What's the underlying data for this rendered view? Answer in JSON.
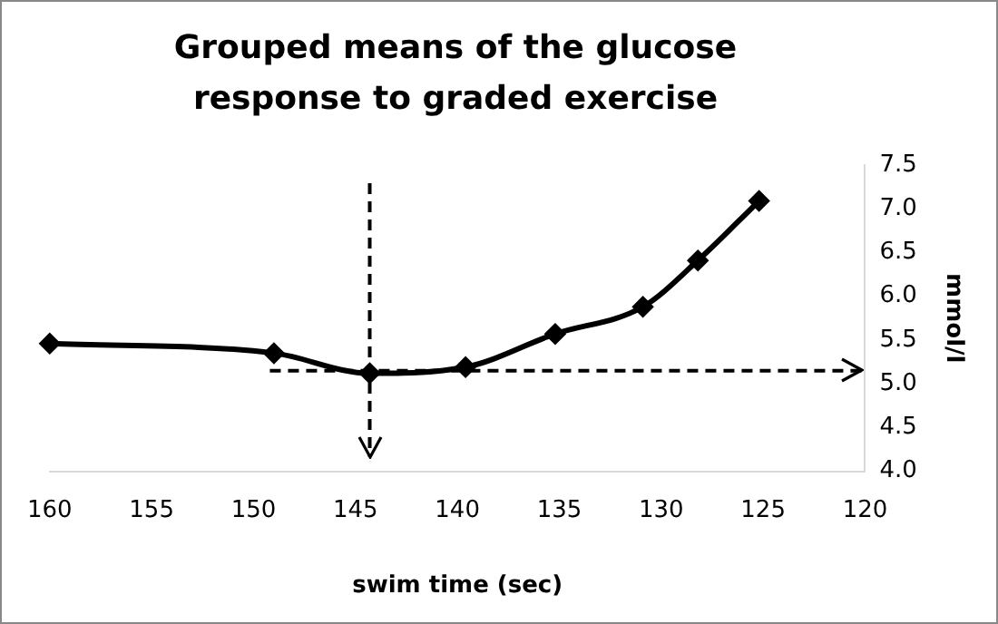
{
  "chart_data": {
    "type": "line",
    "title": "Grouped means of the glucose response to graded exercise",
    "xlabel": "swim time (sec)",
    "ylabel": "mmol/l",
    "x": [
      160,
      149,
      144.3,
      139.6,
      135.2,
      130.9,
      128.2,
      125.2
    ],
    "series": [
      {
        "color": "#000000",
        "values": [
          5.46,
          5.35,
          5.12,
          5.19,
          5.57,
          5.88,
          6.41,
          7.09
        ]
      }
    ],
    "xlim": [
      160,
      120
    ],
    "xticks": [
      160,
      155,
      150,
      145,
      140,
      135,
      130,
      125,
      120
    ],
    "ylim": [
      4,
      7.5
    ],
    "yticks": [
      {
        "value": 4,
        "label": "4.0"
      },
      {
        "value": 4.5,
        "label": "4.5"
      },
      {
        "value": 5,
        "label": "5.0"
      },
      {
        "value": 5.5,
        "label": "5.5"
      },
      {
        "value": 6,
        "label": "6.0"
      },
      {
        "value": 6.5,
        "label": "6.5"
      },
      {
        "value": 7,
        "label": "7.0"
      },
      {
        "value": 7.5,
        "label": "7.5"
      }
    ],
    "ref_lines": [
      {
        "axis": "x",
        "value": 144.3,
        "line_style": "dashed"
      },
      {
        "axis": "y",
        "value": 5.15,
        "line_style": "dashed"
      }
    ],
    "marker": "diamond",
    "line_style": "solid",
    "grid": false,
    "legend": false
  }
}
